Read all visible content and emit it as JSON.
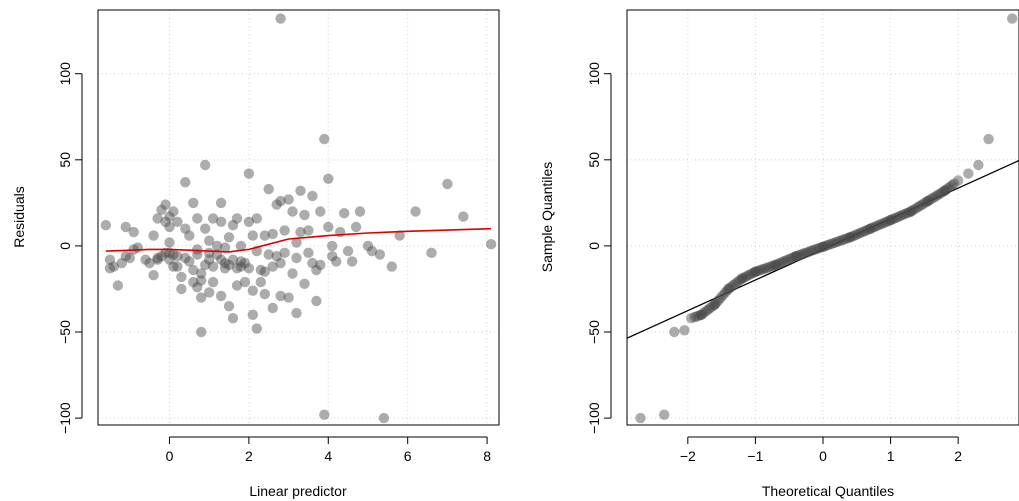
{
  "chart_data": [
    {
      "type": "scatter",
      "xlabel": "Linear predictor",
      "ylabel": "Residuals",
      "xlim": [
        -1.8,
        8.3
      ],
      "ylim": [
        -104,
        137
      ],
      "x_ticks": [
        "0",
        "2",
        "4",
        "6",
        "8"
      ],
      "y_ticks": [
        "−100",
        "−50",
        "0",
        "50",
        "100"
      ],
      "grid": true,
      "point_color": "rgba(70,70,70,0.45)",
      "smooth_color": "#dd0000",
      "points": [
        [
          -1.6,
          12
        ],
        [
          -1.5,
          -8
        ],
        [
          -1.5,
          -13
        ],
        [
          -1.4,
          -12
        ],
        [
          -1.3,
          -23
        ],
        [
          -1.2,
          -10
        ],
        [
          -1.1,
          -6
        ],
        [
          -1.1,
          11
        ],
        [
          -1.0,
          -7
        ],
        [
          -0.9,
          -2
        ],
        [
          -0.9,
          8
        ],
        [
          -0.8,
          -1
        ],
        [
          -0.6,
          -8
        ],
        [
          -0.5,
          -10
        ],
        [
          -0.4,
          6
        ],
        [
          -0.4,
          -17
        ],
        [
          -0.3,
          -8
        ],
        [
          -0.3,
          -7
        ],
        [
          -0.3,
          16
        ],
        [
          -0.2,
          -6
        ],
        [
          -0.2,
          21
        ],
        [
          -0.1,
          -4
        ],
        [
          -0.1,
          14
        ],
        [
          0.0,
          17
        ],
        [
          0.0,
          -8
        ],
        [
          0.0,
          2
        ],
        [
          -0.1,
          24
        ],
        [
          0.0,
          -4
        ],
        [
          0.0,
          11
        ],
        [
          0.1,
          -12
        ],
        [
          0.1,
          -5
        ],
        [
          0.1,
          20
        ],
        [
          0.2,
          -12
        ],
        [
          0.2,
          14
        ],
        [
          0.2,
          -6
        ],
        [
          0.3,
          -18
        ],
        [
          0.3,
          -25
        ],
        [
          0.4,
          -7
        ],
        [
          0.4,
          37
        ],
        [
          0.4,
          10
        ],
        [
          0.5,
          6
        ],
        [
          0.5,
          -9
        ],
        [
          0.6,
          -14
        ],
        [
          0.6,
          -21
        ],
        [
          0.6,
          25
        ],
        [
          0.7,
          -24
        ],
        [
          0.7,
          -2
        ],
        [
          0.7,
          16
        ],
        [
          0.7,
          -5
        ],
        [
          0.8,
          -30
        ],
        [
          0.8,
          -50
        ],
        [
          0.8,
          -16
        ],
        [
          0.8,
          -20
        ],
        [
          0.9,
          47
        ],
        [
          0.9,
          -11
        ],
        [
          0.9,
          10
        ],
        [
          1.0,
          -4
        ],
        [
          1.0,
          -27
        ],
        [
          1.0,
          -8
        ],
        [
          1.0,
          3
        ],
        [
          1.1,
          16
        ],
        [
          1.1,
          -21
        ],
        [
          1.1,
          -12
        ],
        [
          1.2,
          0
        ],
        [
          1.2,
          -5
        ],
        [
          1.3,
          25
        ],
        [
          1.3,
          -8
        ],
        [
          1.3,
          14
        ],
        [
          1.3,
          -29
        ],
        [
          1.4,
          -10
        ],
        [
          1.4,
          -13
        ],
        [
          1.4,
          -1
        ],
        [
          1.5,
          -35
        ],
        [
          1.5,
          -11
        ],
        [
          1.5,
          5
        ],
        [
          1.6,
          12
        ],
        [
          1.6,
          -42
        ],
        [
          1.6,
          -8
        ],
        [
          1.7,
          16
        ],
        [
          1.7,
          -13
        ],
        [
          1.7,
          -23
        ],
        [
          1.8,
          -12
        ],
        [
          1.8,
          0
        ],
        [
          1.8,
          -9
        ],
        [
          1.9,
          -10
        ],
        [
          1.9,
          -21
        ],
        [
          2.0,
          42
        ],
        [
          2.0,
          -13
        ],
        [
          2.0,
          14
        ],
        [
          2.1,
          6
        ],
        [
          2.1,
          -40
        ],
        [
          2.1,
          -26
        ],
        [
          2.2,
          -48
        ],
        [
          2.2,
          -3
        ],
        [
          2.2,
          16
        ],
        [
          2.3,
          -14
        ],
        [
          2.3,
          -21
        ],
        [
          2.4,
          6
        ],
        [
          2.4,
          -15
        ],
        [
          2.4,
          -28
        ],
        [
          2.5,
          33
        ],
        [
          2.5,
          -5
        ],
        [
          2.6,
          -36
        ],
        [
          2.6,
          -12
        ],
        [
          2.6,
          7
        ],
        [
          2.7,
          -6
        ],
        [
          2.7,
          24
        ],
        [
          2.8,
          -29
        ],
        [
          2.8,
          -10
        ],
        [
          2.8,
          26
        ],
        [
          2.9,
          -4
        ],
        [
          2.9,
          9
        ],
        [
          3.0,
          27
        ],
        [
          3.0,
          -30
        ],
        [
          3.1,
          -16
        ],
        [
          3.1,
          20
        ],
        [
          3.2,
          -7
        ],
        [
          3.2,
          -39
        ],
        [
          3.2,
          2
        ],
        [
          3.3,
          32
        ],
        [
          3.3,
          8
        ],
        [
          3.4,
          -22
        ],
        [
          3.4,
          18
        ],
        [
          3.5,
          -4
        ],
        [
          3.5,
          9
        ],
        [
          3.6,
          29
        ],
        [
          3.6,
          -10
        ],
        [
          3.7,
          -14
        ],
        [
          3.7,
          -32
        ],
        [
          3.8,
          20
        ],
        [
          3.8,
          -11
        ],
        [
          3.9,
          62
        ],
        [
          3.9,
          -98
        ],
        [
          4.0,
          39
        ],
        [
          4.0,
          11
        ],
        [
          4.1,
          0
        ],
        [
          4.1,
          -6
        ],
        [
          4.2,
          -9
        ],
        [
          4.3,
          8
        ],
        [
          4.4,
          19
        ],
        [
          4.5,
          -3
        ],
        [
          4.6,
          -9
        ],
        [
          4.7,
          11
        ],
        [
          4.8,
          20
        ],
        [
          5.0,
          0
        ],
        [
          5.1,
          -3
        ],
        [
          5.3,
          -5
        ],
        [
          5.4,
          -100
        ],
        [
          5.6,
          -12
        ],
        [
          5.8,
          6
        ],
        [
          6.2,
          20
        ],
        [
          6.6,
          -4
        ],
        [
          7.0,
          36
        ],
        [
          7.4,
          17
        ],
        [
          8.1,
          1
        ],
        [
          2.8,
          132
        ]
      ],
      "smooth": [
        [
          -1.6,
          -3
        ],
        [
          -1.0,
          -2.5
        ],
        [
          -0.5,
          -2
        ],
        [
          0,
          -2
        ],
        [
          0.5,
          -2.5
        ],
        [
          1.0,
          -3
        ],
        [
          1.5,
          -3.5
        ],
        [
          2.0,
          -2
        ],
        [
          2.5,
          1
        ],
        [
          3.0,
          4
        ],
        [
          3.5,
          5
        ],
        [
          4.0,
          6
        ],
        [
          5.0,
          7.5
        ],
        [
          6.0,
          8.5
        ],
        [
          7.0,
          9.2
        ],
        [
          8.1,
          10
        ]
      ]
    },
    {
      "type": "scatter",
      "xlabel": "Theoretical Quantiles",
      "ylabel": "Sample Quantiles",
      "xlim": [
        -2.9,
        2.9
      ],
      "ylim": [
        -104,
        137
      ],
      "x_ticks": [
        "−2",
        "−1",
        "0",
        "1",
        "2"
      ],
      "y_ticks": [
        "−100",
        "−50",
        "0",
        "50",
        "100"
      ],
      "grid": true,
      "point_color": "rgba(70,70,70,0.45)",
      "reference_line": {
        "slope": 17.8,
        "intercept": -2
      },
      "qq_anchors": [
        [
          -2.7,
          -100
        ],
        [
          -2.35,
          -98
        ],
        [
          -2.2,
          -50
        ],
        [
          -2.05,
          -49
        ],
        [
          -1.95,
          -42
        ],
        [
          -1.8,
          -40
        ],
        [
          -1.6,
          -34
        ],
        [
          -1.4,
          -25
        ],
        [
          -1.2,
          -19
        ],
        [
          -1.0,
          -15
        ],
        [
          -0.7,
          -11
        ],
        [
          -0.4,
          -6
        ],
        [
          0,
          -0.5
        ],
        [
          0.4,
          5
        ],
        [
          0.7,
          10
        ],
        [
          1.0,
          15
        ],
        [
          1.3,
          20
        ],
        [
          1.55,
          26
        ],
        [
          1.8,
          32
        ],
        [
          2.0,
          38
        ],
        [
          2.15,
          42
        ],
        [
          2.3,
          47
        ],
        [
          2.45,
          62
        ],
        [
          2.8,
          132
        ]
      ]
    }
  ]
}
